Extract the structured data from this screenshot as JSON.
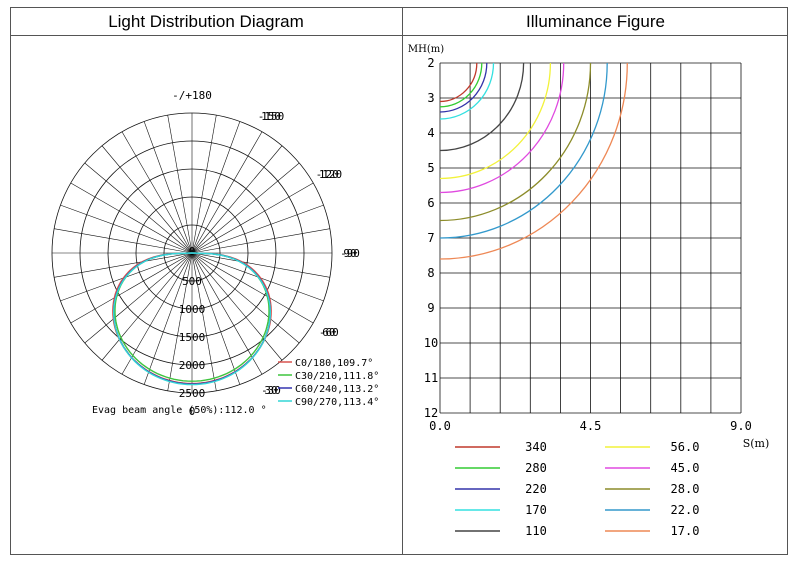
{
  "panels": {
    "left_title": "Light Distribution Diagram",
    "right_title": "Illuminance Figure"
  },
  "chart_data": [
    {
      "type": "polar",
      "title": "Light Distribution Diagram",
      "angle_labels": [
        {
          "text": "-/+180",
          "angle": 180
        },
        {
          "text": "150",
          "angle": 150
        },
        {
          "text": "-150",
          "angle": -150
        },
        {
          "text": "120",
          "angle": 120
        },
        {
          "text": "-120",
          "angle": -120
        },
        {
          "text": "90",
          "angle": 90
        },
        {
          "text": "-90",
          "angle": -90
        },
        {
          "text": "60",
          "angle": 60
        },
        {
          "text": "-60",
          "angle": -60
        },
        {
          "text": "30",
          "angle": 30
        },
        {
          "text": "-30",
          "angle": -30
        },
        {
          "text": "0",
          "angle": 0
        }
      ],
      "radial_ticks": [
        "0",
        "500",
        "1000",
        "1500",
        "2000",
        "2500"
      ],
      "r_max": 2500,
      "series": [
        {
          "name": "C0/180,109.7°",
          "color": "#d9534f",
          "intensity_peak": 2330,
          "width": 0.54
        },
        {
          "name": "C30/210,111.8°",
          "color": "#3ec43e",
          "intensity_peak": 2290,
          "width": 0.56
        },
        {
          "name": "C60/240,113.2°",
          "color": "#3434b0",
          "intensity_peak": 2340,
          "width": 0.57
        },
        {
          "name": "C90/270,113.4°",
          "color": "#33d6d6",
          "intensity_peak": 2350,
          "width": 0.58
        }
      ],
      "annotation": "Evag beam angle (50%):112.0 °"
    },
    {
      "type": "line",
      "title": "Illuminance Figure",
      "ylabel": "MH(m)",
      "xlabel": "S(m)",
      "y_ticks": [
        "2",
        "3",
        "4",
        "5",
        "6",
        "7",
        "8",
        "9",
        "10",
        "11",
        "12"
      ],
      "x_ticks": [
        "0.0",
        "4.5",
        "9.0"
      ],
      "xlim": [
        0,
        9
      ],
      "ylim": [
        2,
        12
      ],
      "series": [
        {
          "name": "340",
          "color": "#c0392b",
          "radius": 1.1
        },
        {
          "name": "280",
          "color": "#33cc33",
          "radius": 1.25
        },
        {
          "name": "220",
          "color": "#3333aa",
          "radius": 1.4
        },
        {
          "name": "170",
          "color": "#33e0e0",
          "radius": 1.6
        },
        {
          "name": "110",
          "color": "#444444",
          "radius": 2.5
        },
        {
          "name": "56.0",
          "color": "#f2f23a",
          "radius": 3.3
        },
        {
          "name": "45.0",
          "color": "#e04ae0",
          "radius": 3.7
        },
        {
          "name": "28.0",
          "color": "#8c8c2a",
          "radius": 4.5
        },
        {
          "name": "22.0",
          "color": "#3399cc",
          "radius": 5.0
        },
        {
          "name": "17.0",
          "color": "#ee8855",
          "radius": 5.6
        }
      ]
    }
  ]
}
